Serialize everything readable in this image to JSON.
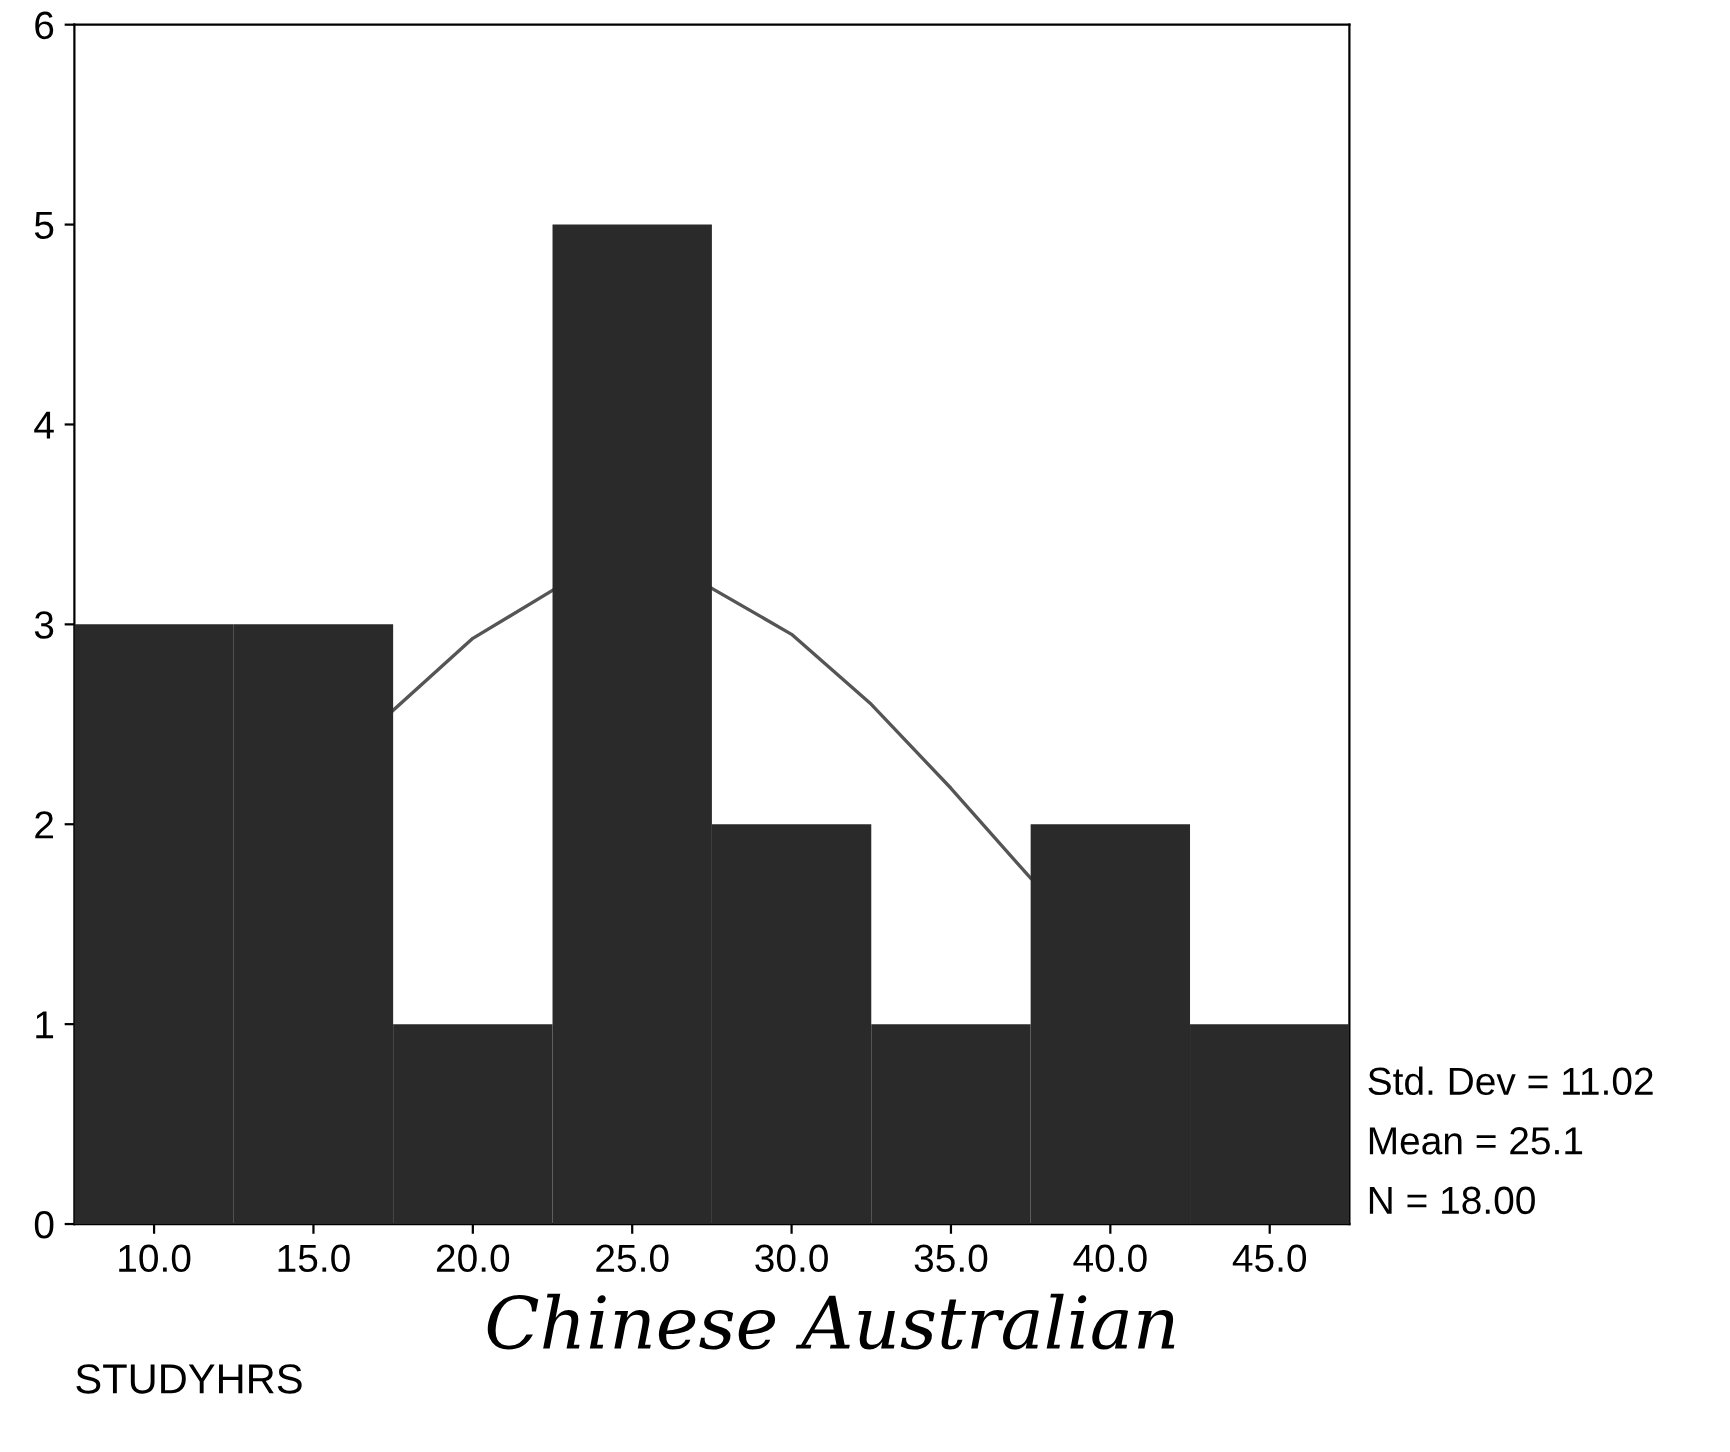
{
  "chart_data": {
    "type": "histogram",
    "xlabel": "STUDYHRS",
    "bins": [
      7.5,
      12.5,
      17.5,
      22.5,
      27.5,
      32.5,
      37.5,
      42.5,
      47.5
    ],
    "values": [
      3,
      3,
      1,
      5,
      2,
      1,
      2,
      1
    ],
    "color": "#2a2a2a",
    "series": [
      {
        "type": "line",
        "color": "#555555",
        "x": [
          17.5,
          20,
          22.5,
          25,
          27.5,
          30,
          32.5,
          35,
          37.5
        ],
        "values": [
          2.57,
          2.93,
          3.17,
          null,
          3.18,
          2.95,
          2.6,
          2.18,
          1.73
        ]
      }
    ],
    "xlim": [
      7.5,
      47.5
    ],
    "ylim": [
      0,
      6
    ],
    "xticks": [
      {
        "value": 10,
        "label": "10.0"
      },
      {
        "value": 15,
        "label": "15.0"
      },
      {
        "value": 20,
        "label": "20.0"
      },
      {
        "value": 25,
        "label": "25.0"
      },
      {
        "value": 30,
        "label": "30.0"
      },
      {
        "value": 35,
        "label": "35.0"
      },
      {
        "value": 40,
        "label": "40.0"
      },
      {
        "value": 45,
        "label": "45.0"
      }
    ],
    "yticks": [
      0,
      1,
      2,
      3,
      4,
      5,
      6
    ],
    "grid": false,
    "legend": false,
    "annotations": [
      "Std. Dev = 11.02",
      "Mean = 25.1",
      "N = 18.00",
      "Chinese Australian"
    ]
  }
}
